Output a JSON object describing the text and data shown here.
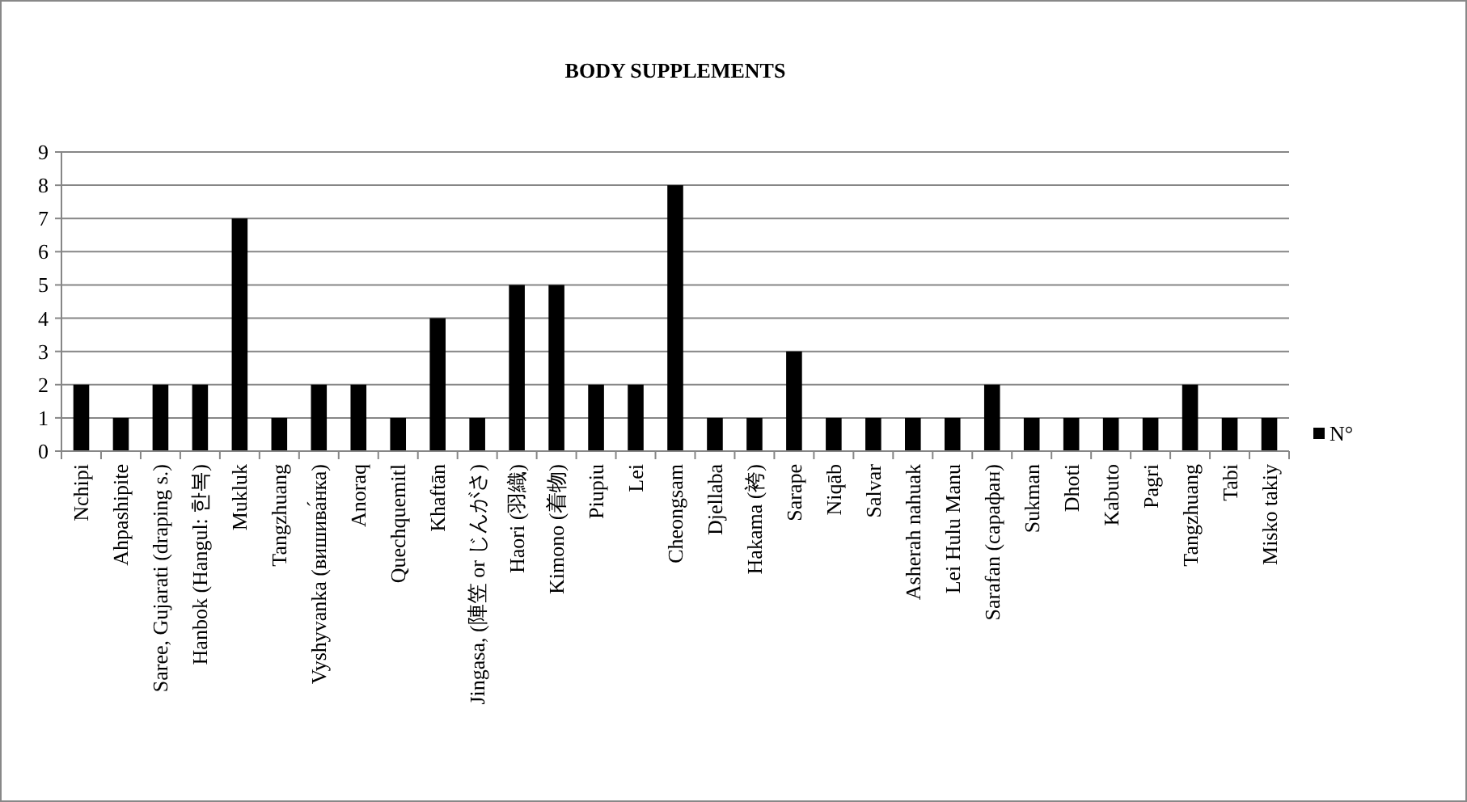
{
  "chart_data": {
    "type": "bar",
    "title": "BODY SUPPLEMENTS",
    "categories": [
      "Nchipi",
      "Ahpashipite",
      "Saree, Gujarati (draping s.)",
      "Hanbok (Hangul: 한복)",
      "Mukluk",
      "Tangzhuang",
      "Vyshyvanka (вишива́нка)",
      "Anoraq",
      "Quechquemitl",
      "Khaftān",
      "Jingasa, (陣笠 or じんがさ)",
      "Haori (羽織)",
      "Kimono (着物)",
      "Piupiu",
      "Lei",
      "Cheongsam",
      "Djellaba",
      "Hakama (袴)",
      "Sarape",
      "Niqāb",
      "Salvar",
      "Asherah nahuak",
      "Lei Hulu Manu",
      "Sarafan (сарафан)",
      "Sukman",
      "Dhoti",
      "Kabuto",
      "Pagri",
      "Tangzhuang",
      "Tabi",
      "Misko takiy"
    ],
    "series": [
      {
        "name": "N°",
        "color": "#000000",
        "values": [
          2,
          1,
          2,
          2,
          7,
          1,
          2,
          2,
          1,
          4,
          1,
          5,
          5,
          2,
          2,
          8,
          1,
          1,
          3,
          1,
          1,
          1,
          1,
          2,
          1,
          1,
          1,
          1,
          2,
          1,
          1
        ]
      }
    ],
    "ylim": [
      0,
      9
    ],
    "yticks": [
      0,
      1,
      2,
      3,
      4,
      5,
      6,
      7,
      8,
      9
    ],
    "grid": "y",
    "legend": "right"
  }
}
